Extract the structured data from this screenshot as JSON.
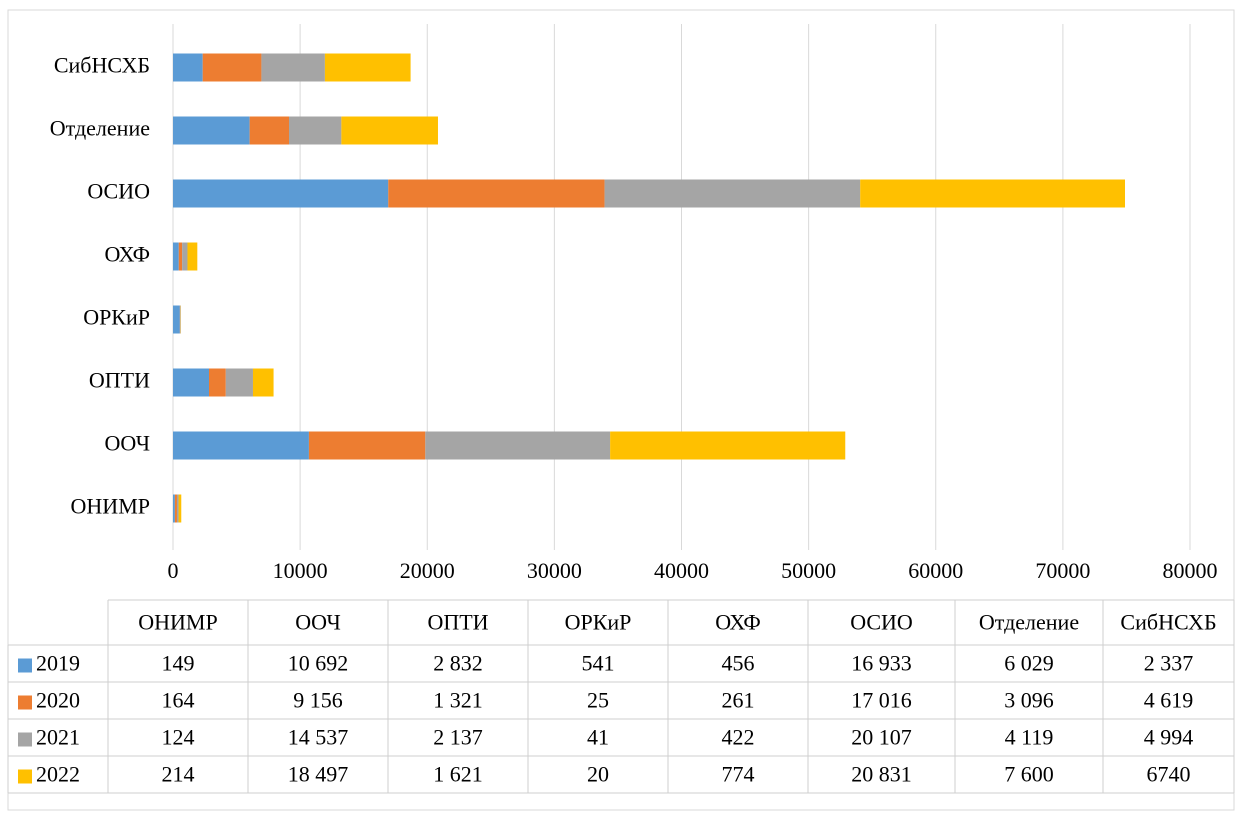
{
  "chart_data": {
    "type": "bar",
    "orientation": "horizontal",
    "stacked": true,
    "categories": [
      "ОНИМР",
      "ООЧ",
      "ОПТИ",
      "ОРКиР",
      "ОХФ",
      "ОСИО",
      "Отделение",
      "СибНСХБ"
    ],
    "series": [
      {
        "name": "2019",
        "color": "#5b9bd5",
        "values": [
          149,
          10692,
          2832,
          541,
          456,
          16933,
          6029,
          2337
        ],
        "value_labels": [
          "149",
          "10 692",
          "2 832",
          "541",
          "456",
          "16 933",
          "6 029",
          "2 337"
        ]
      },
      {
        "name": "2020",
        "color": "#ed7d31",
        "values": [
          164,
          9156,
          1321,
          25,
          261,
          17016,
          3096,
          4619
        ],
        "value_labels": [
          "164",
          "9 156",
          "1 321",
          "25",
          "261",
          "17 016",
          "3 096",
          "4 619"
        ]
      },
      {
        "name": "2021",
        "color": "#a5a5a5",
        "values": [
          124,
          14537,
          2137,
          41,
          422,
          20107,
          4119,
          4994
        ],
        "value_labels": [
          "124",
          "14 537",
          "2 137",
          "41",
          "422",
          "20 107",
          "4 119",
          "4 994"
        ]
      },
      {
        "name": "2022",
        "color": "#ffc000",
        "values": [
          214,
          18497,
          1621,
          20,
          774,
          20831,
          7600,
          6740
        ],
        "value_labels": [
          "214",
          "18 497",
          "1 621",
          "20",
          "774",
          "20 831",
          "7 600",
          "6740"
        ]
      }
    ],
    "xlim": [
      0,
      80000
    ],
    "xticks": [
      0,
      10000,
      20000,
      30000,
      40000,
      50000,
      60000,
      70000,
      80000
    ],
    "grid": true,
    "data_table": true
  }
}
